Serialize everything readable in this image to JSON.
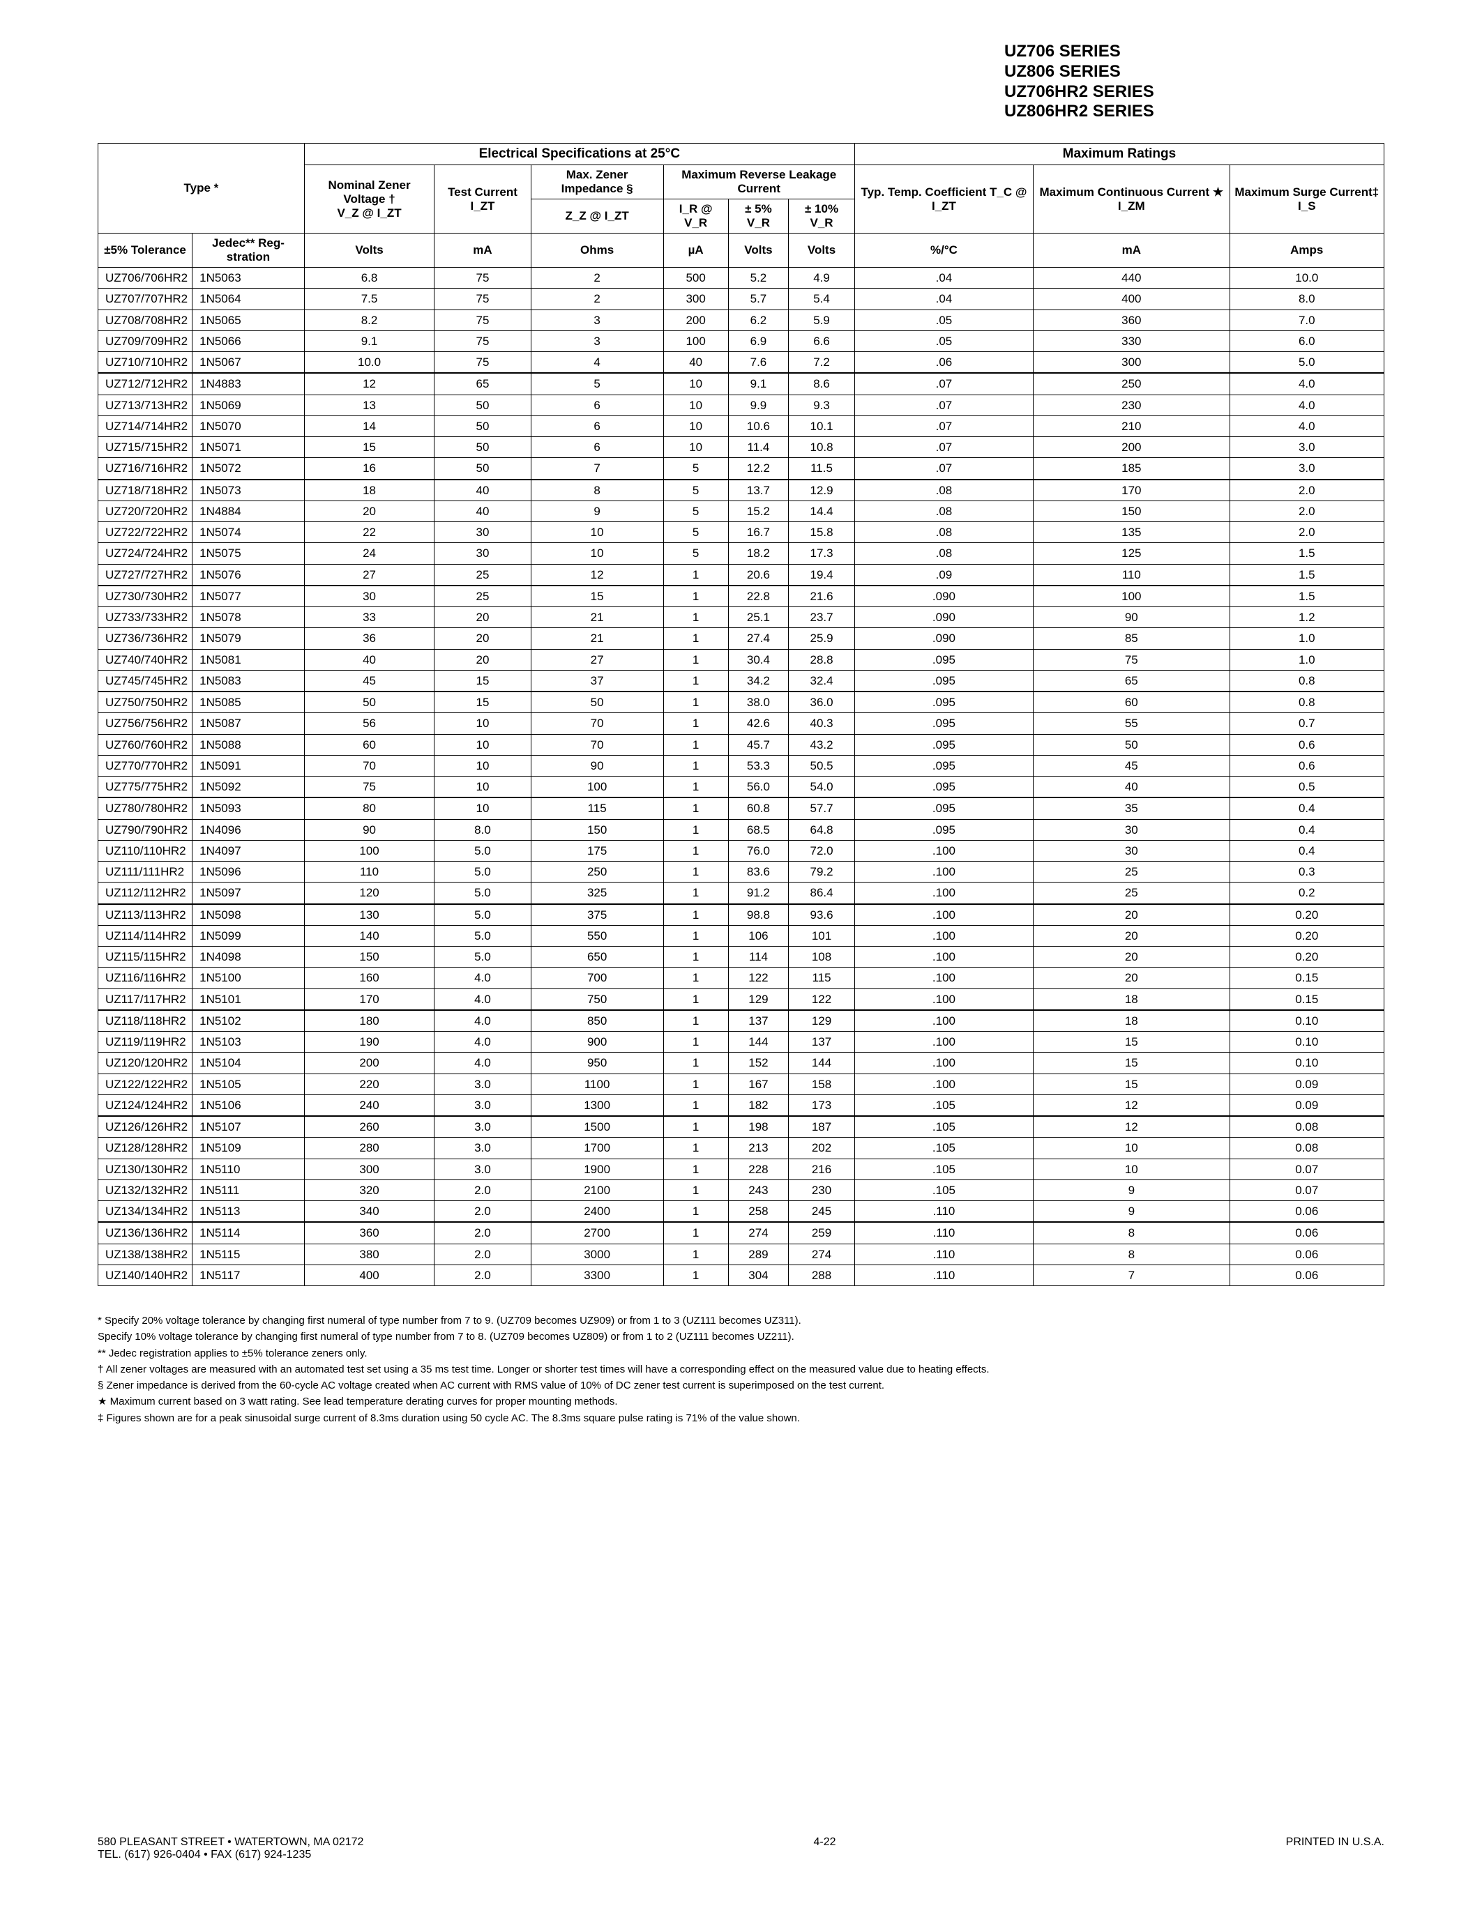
{
  "series_header": [
    "UZ706 SERIES",
    "UZ806 SERIES",
    "UZ706HR2 SERIES",
    "UZ806HR2 SERIES"
  ],
  "table": {
    "headers": {
      "elec_spec": "Electrical Specifications at 25°C",
      "max_ratings": "Maximum Ratings",
      "type": "Type *",
      "nominal": "Nominal Zener Voltage †",
      "nominal_sub": "V_Z @ I_ZT",
      "test_current": "Test Current I_ZT",
      "max_zener_imp": "Max. Zener Impedance §",
      "max_zener_imp_sub": "Z_Z @ I_ZT",
      "max_rev_leak": "Maximum Reverse Leakage Current",
      "ir_vr": "I_R @ V_R",
      "pm5": "± 5% V_R",
      "pm10": "± 10% V_R",
      "typ_temp": "Typ. Temp. Coefficient T_C @ I_ZT",
      "max_cont": "Maximum Continuous Current ★ I_ZM",
      "max_surge": "Maximum Surge Current‡ I_S",
      "tol5": "±5% Tolerance",
      "jedec": "Jedec** Reg-stration",
      "units": [
        "Volts",
        "mA",
        "Ohms",
        "µA",
        "Volts",
        "Volts",
        "%/°C",
        "mA",
        "Amps"
      ]
    },
    "groups": [
      [
        [
          "UZ706/706HR2",
          "1N5063",
          "6.8",
          "75",
          "2",
          "500",
          "5.2",
          "4.9",
          ".04",
          "440",
          "10.0"
        ],
        [
          "UZ707/707HR2",
          "1N5064",
          "7.5",
          "75",
          "2",
          "300",
          "5.7",
          "5.4",
          ".04",
          "400",
          "8.0"
        ],
        [
          "UZ708/708HR2",
          "1N5065",
          "8.2",
          "75",
          "3",
          "200",
          "6.2",
          "5.9",
          ".05",
          "360",
          "7.0"
        ],
        [
          "UZ709/709HR2",
          "1N5066",
          "9.1",
          "75",
          "3",
          "100",
          "6.9",
          "6.6",
          ".05",
          "330",
          "6.0"
        ],
        [
          "UZ710/710HR2",
          "1N5067",
          "10.0",
          "75",
          "4",
          "40",
          "7.6",
          "7.2",
          ".06",
          "300",
          "5.0"
        ]
      ],
      [
        [
          "UZ712/712HR2",
          "1N4883",
          "12",
          "65",
          "5",
          "10",
          "9.1",
          "8.6",
          ".07",
          "250",
          "4.0"
        ],
        [
          "UZ713/713HR2",
          "1N5069",
          "13",
          "50",
          "6",
          "10",
          "9.9",
          "9.3",
          ".07",
          "230",
          "4.0"
        ],
        [
          "UZ714/714HR2",
          "1N5070",
          "14",
          "50",
          "6",
          "10",
          "10.6",
          "10.1",
          ".07",
          "210",
          "4.0"
        ],
        [
          "UZ715/715HR2",
          "1N5071",
          "15",
          "50",
          "6",
          "10",
          "11.4",
          "10.8",
          ".07",
          "200",
          "3.0"
        ],
        [
          "UZ716/716HR2",
          "1N5072",
          "16",
          "50",
          "7",
          "5",
          "12.2",
          "11.5",
          ".07",
          "185",
          "3.0"
        ]
      ],
      [
        [
          "UZ718/718HR2",
          "1N5073",
          "18",
          "40",
          "8",
          "5",
          "13.7",
          "12.9",
          ".08",
          "170",
          "2.0"
        ],
        [
          "UZ720/720HR2",
          "1N4884",
          "20",
          "40",
          "9",
          "5",
          "15.2",
          "14.4",
          ".08",
          "150",
          "2.0"
        ],
        [
          "UZ722/722HR2",
          "1N5074",
          "22",
          "30",
          "10",
          "5",
          "16.7",
          "15.8",
          ".08",
          "135",
          "2.0"
        ],
        [
          "UZ724/724HR2",
          "1N5075",
          "24",
          "30",
          "10",
          "5",
          "18.2",
          "17.3",
          ".08",
          "125",
          "1.5"
        ],
        [
          "UZ727/727HR2",
          "1N5076",
          "27",
          "25",
          "12",
          "1",
          "20.6",
          "19.4",
          ".09",
          "110",
          "1.5"
        ]
      ],
      [
        [
          "UZ730/730HR2",
          "1N5077",
          "30",
          "25",
          "15",
          "1",
          "22.8",
          "21.6",
          ".090",
          "100",
          "1.5"
        ],
        [
          "UZ733/733HR2",
          "1N5078",
          "33",
          "20",
          "21",
          "1",
          "25.1",
          "23.7",
          ".090",
          "90",
          "1.2"
        ],
        [
          "UZ736/736HR2",
          "1N5079",
          "36",
          "20",
          "21",
          "1",
          "27.4",
          "25.9",
          ".090",
          "85",
          "1.0"
        ],
        [
          "UZ740/740HR2",
          "1N5081",
          "40",
          "20",
          "27",
          "1",
          "30.4",
          "28.8",
          ".095",
          "75",
          "1.0"
        ],
        [
          "UZ745/745HR2",
          "1N5083",
          "45",
          "15",
          "37",
          "1",
          "34.2",
          "32.4",
          ".095",
          "65",
          "0.8"
        ]
      ],
      [
        [
          "UZ750/750HR2",
          "1N5085",
          "50",
          "15",
          "50",
          "1",
          "38.0",
          "36.0",
          ".095",
          "60",
          "0.8"
        ],
        [
          "UZ756/756HR2",
          "1N5087",
          "56",
          "10",
          "70",
          "1",
          "42.6",
          "40.3",
          ".095",
          "55",
          "0.7"
        ],
        [
          "UZ760/760HR2",
          "1N5088",
          "60",
          "10",
          "70",
          "1",
          "45.7",
          "43.2",
          ".095",
          "50",
          "0.6"
        ],
        [
          "UZ770/770HR2",
          "1N5091",
          "70",
          "10",
          "90",
          "1",
          "53.3",
          "50.5",
          ".095",
          "45",
          "0.6"
        ],
        [
          "UZ775/775HR2",
          "1N5092",
          "75",
          "10",
          "100",
          "1",
          "56.0",
          "54.0",
          ".095",
          "40",
          "0.5"
        ]
      ],
      [
        [
          "UZ780/780HR2",
          "1N5093",
          "80",
          "10",
          "115",
          "1",
          "60.8",
          "57.7",
          ".095",
          "35",
          "0.4"
        ],
        [
          "UZ790/790HR2",
          "1N4096",
          "90",
          "8.0",
          "150",
          "1",
          "68.5",
          "64.8",
          ".095",
          "30",
          "0.4"
        ],
        [
          "UZ110/110HR2",
          "1N4097",
          "100",
          "5.0",
          "175",
          "1",
          "76.0",
          "72.0",
          ".100",
          "30",
          "0.4"
        ],
        [
          "UZ111/111HR2",
          "1N5096",
          "110",
          "5.0",
          "250",
          "1",
          "83.6",
          "79.2",
          ".100",
          "25",
          "0.3"
        ],
        [
          "UZ112/112HR2",
          "1N5097",
          "120",
          "5.0",
          "325",
          "1",
          "91.2",
          "86.4",
          ".100",
          "25",
          "0.2"
        ]
      ],
      [
        [
          "UZ113/113HR2",
          "1N5098",
          "130",
          "5.0",
          "375",
          "1",
          "98.8",
          "93.6",
          ".100",
          "20",
          "0.20"
        ],
        [
          "UZ114/114HR2",
          "1N5099",
          "140",
          "5.0",
          "550",
          "1",
          "106",
          "101",
          ".100",
          "20",
          "0.20"
        ],
        [
          "UZ115/115HR2",
          "1N4098",
          "150",
          "5.0",
          "650",
          "1",
          "114",
          "108",
          ".100",
          "20",
          "0.20"
        ],
        [
          "UZ116/116HR2",
          "1N5100",
          "160",
          "4.0",
          "700",
          "1",
          "122",
          "115",
          ".100",
          "20",
          "0.15"
        ],
        [
          "UZ117/117HR2",
          "1N5101",
          "170",
          "4.0",
          "750",
          "1",
          "129",
          "122",
          ".100",
          "18",
          "0.15"
        ]
      ],
      [
        [
          "UZ118/118HR2",
          "1N5102",
          "180",
          "4.0",
          "850",
          "1",
          "137",
          "129",
          ".100",
          "18",
          "0.10"
        ],
        [
          "UZ119/119HR2",
          "1N5103",
          "190",
          "4.0",
          "900",
          "1",
          "144",
          "137",
          ".100",
          "15",
          "0.10"
        ],
        [
          "UZ120/120HR2",
          "1N5104",
          "200",
          "4.0",
          "950",
          "1",
          "152",
          "144",
          ".100",
          "15",
          "0.10"
        ],
        [
          "UZ122/122HR2",
          "1N5105",
          "220",
          "3.0",
          "1100",
          "1",
          "167",
          "158",
          ".100",
          "15",
          "0.09"
        ],
        [
          "UZ124/124HR2",
          "1N5106",
          "240",
          "3.0",
          "1300",
          "1",
          "182",
          "173",
          ".105",
          "12",
          "0.09"
        ]
      ],
      [
        [
          "UZ126/126HR2",
          "1N5107",
          "260",
          "3.0",
          "1500",
          "1",
          "198",
          "187",
          ".105",
          "12",
          "0.08"
        ],
        [
          "UZ128/128HR2",
          "1N5109",
          "280",
          "3.0",
          "1700",
          "1",
          "213",
          "202",
          ".105",
          "10",
          "0.08"
        ],
        [
          "UZ130/130HR2",
          "1N5110",
          "300",
          "3.0",
          "1900",
          "1",
          "228",
          "216",
          ".105",
          "10",
          "0.07"
        ],
        [
          "UZ132/132HR2",
          "1N5111",
          "320",
          "2.0",
          "2100",
          "1",
          "243",
          "230",
          ".105",
          "9",
          "0.07"
        ],
        [
          "UZ134/134HR2",
          "1N5113",
          "340",
          "2.0",
          "2400",
          "1",
          "258",
          "245",
          ".110",
          "9",
          "0.06"
        ]
      ],
      [
        [
          "UZ136/136HR2",
          "1N5114",
          "360",
          "2.0",
          "2700",
          "1",
          "274",
          "259",
          ".110",
          "8",
          "0.06"
        ],
        [
          "UZ138/138HR2",
          "1N5115",
          "380",
          "2.0",
          "3000",
          "1",
          "289",
          "274",
          ".110",
          "8",
          "0.06"
        ],
        [
          "UZ140/140HR2",
          "1N5117",
          "400",
          "2.0",
          "3300",
          "1",
          "304",
          "288",
          ".110",
          "7",
          "0.06"
        ]
      ]
    ]
  },
  "footnotes": [
    "* Specify 20% voltage tolerance by changing first numeral of type number from 7 to 9. (UZ709 becomes UZ909) or from 1 to 3 (UZ111 becomes UZ311).",
    "Specify 10% voltage tolerance by changing first numeral of type number from 7 to 8. (UZ709 becomes UZ809) or from 1 to 2 (UZ111 becomes UZ211).",
    "** Jedec registration applies to ±5% tolerance zeners only.",
    "† All zener voltages are measured with an automated test set using a 35 ms test time. Longer or shorter test times will have a corresponding effect on the measured value due to heating effects.",
    "§ Zener impedance is derived from the 60-cycle AC voltage created when AC current with RMS value of 10% of DC zener test current is superimposed on the test current.",
    "★ Maximum current based on 3 watt rating. See lead temperature derating curves for proper mounting methods.",
    "‡ Figures shown are for a peak sinusoidal surge current of 8.3ms duration using 50 cycle AC. The 8.3ms square pulse rating is 71% of the value shown."
  ],
  "footer": {
    "address": "580 PLEASANT STREET • WATERTOWN, MA 02172",
    "tel": "TEL. (617) 926-0404 • FAX (617) 924-1235",
    "page": "4-22",
    "printed": "PRINTED IN U.S.A."
  }
}
